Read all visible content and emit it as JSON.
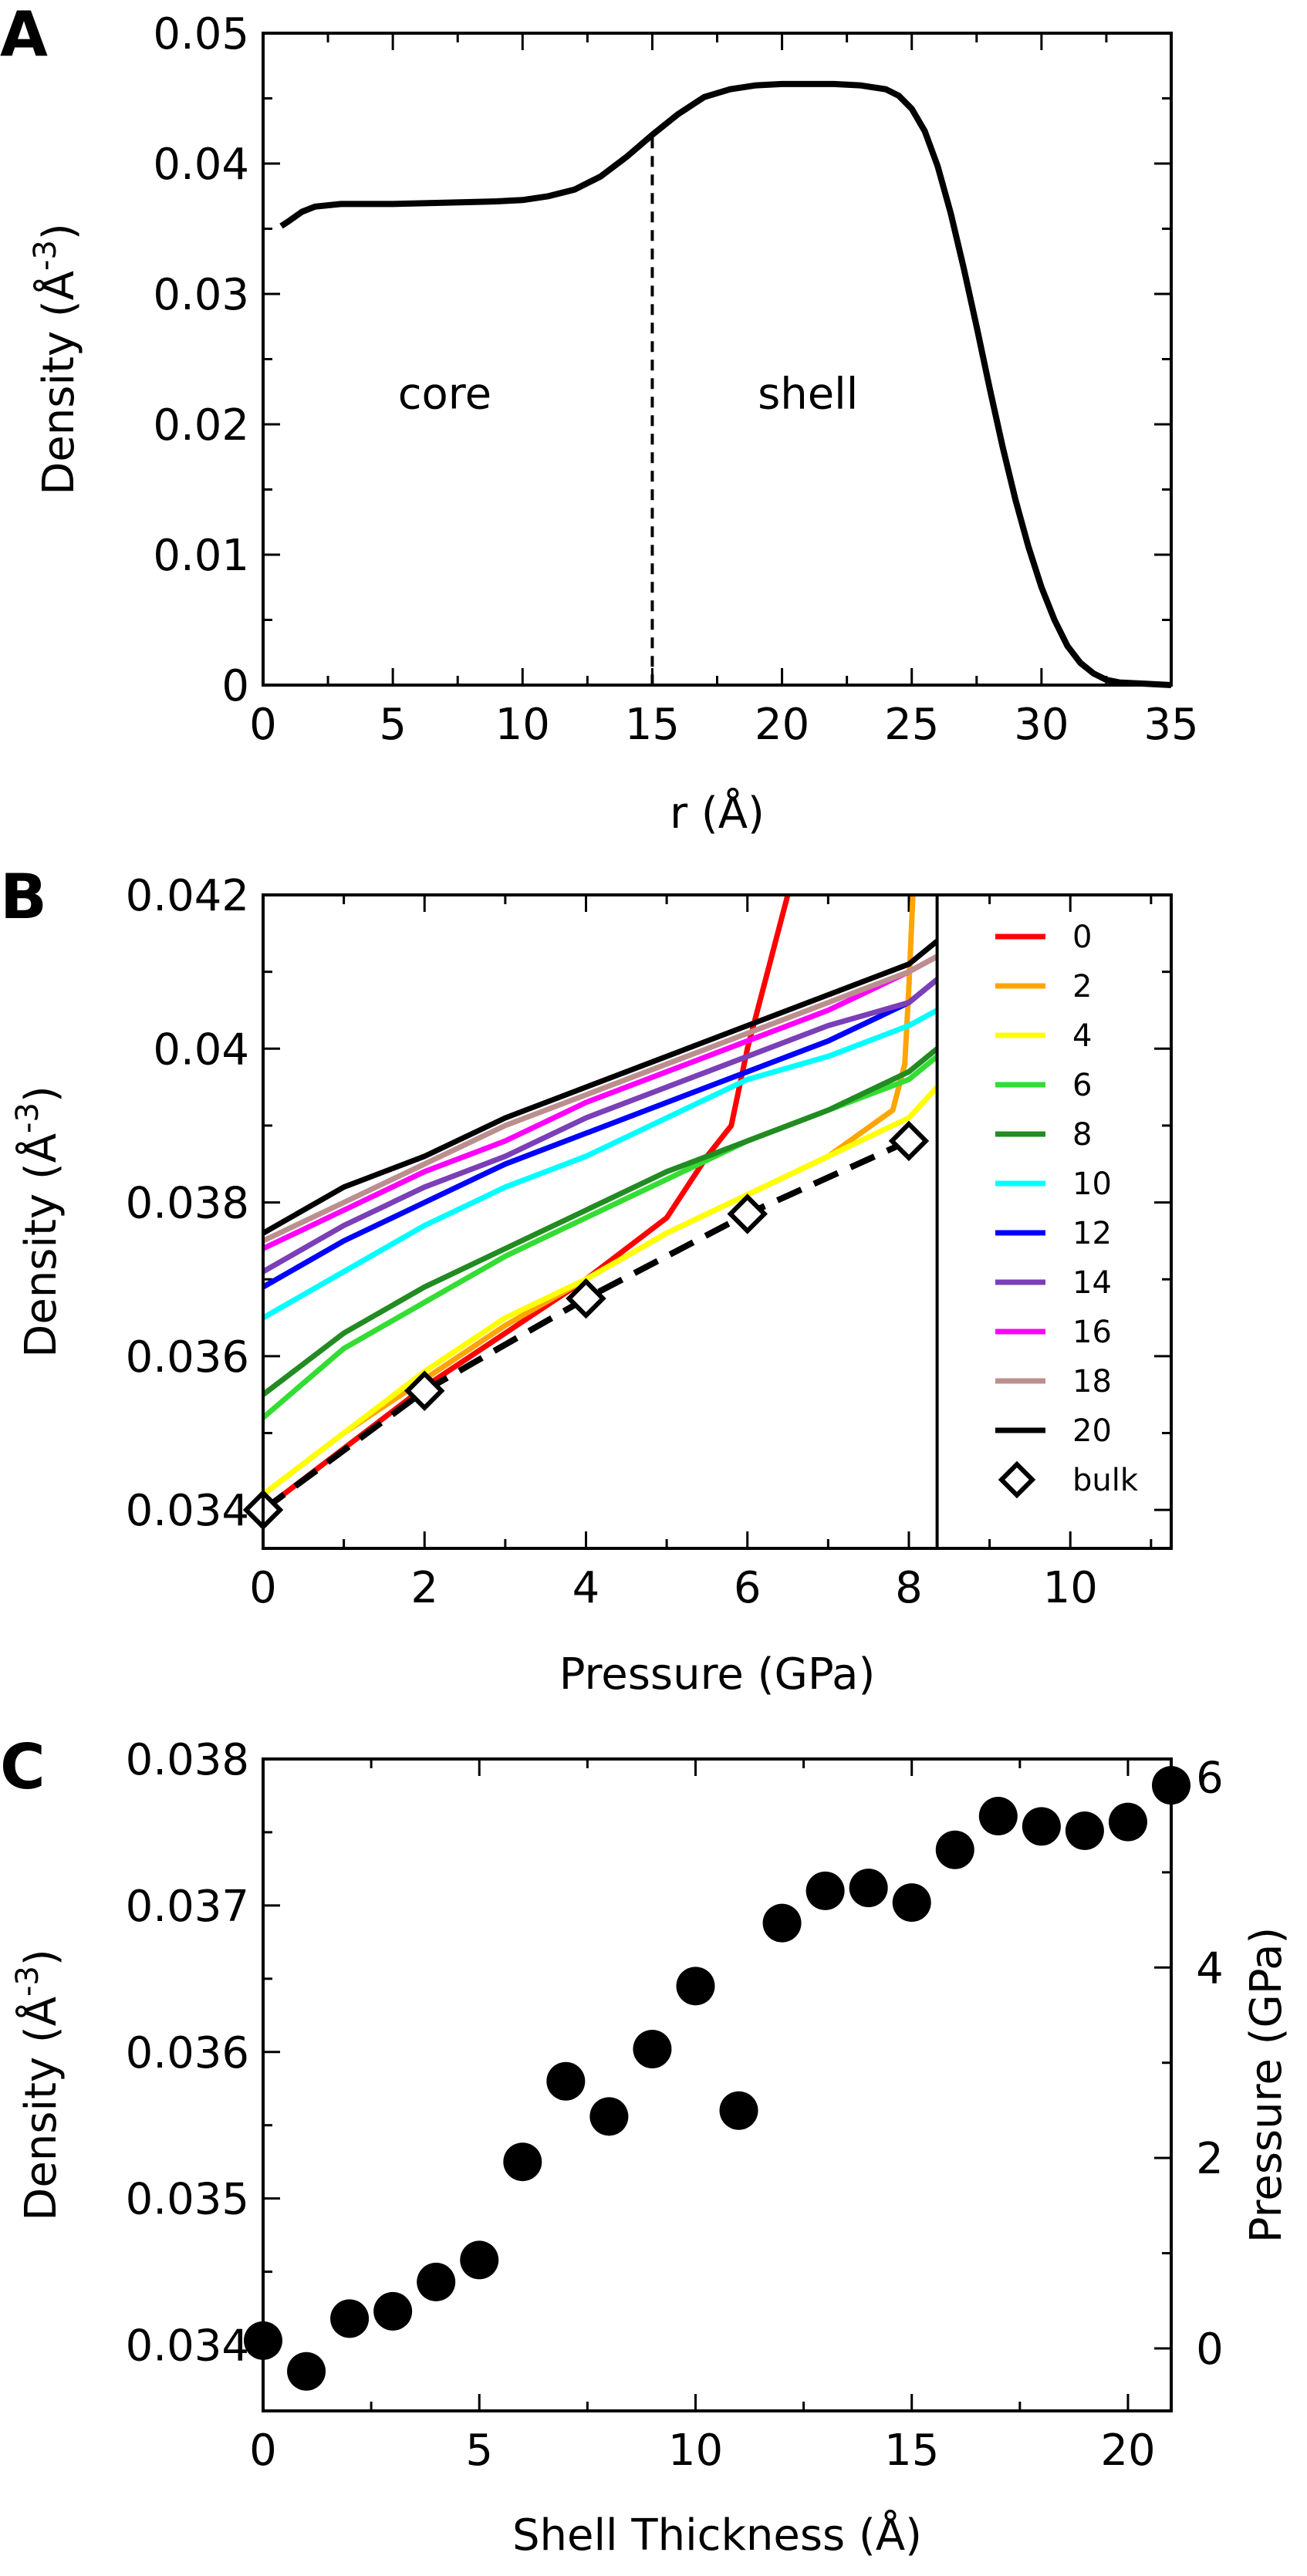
{
  "chart_data": [
    {
      "panel": "A",
      "type": "line",
      "xlabel": "r (Å)",
      "ylabel_text": "Density (Å",
      "ylabel_sup": "-3",
      "ylabel_close": ")",
      "xlim": [
        0,
        35
      ],
      "ylim": [
        0,
        0.05
      ],
      "xticks": [
        0,
        5,
        10,
        15,
        20,
        25,
        30,
        35
      ],
      "yticks": [
        0,
        0.01,
        0.02,
        0.03,
        0.04,
        0.05
      ],
      "ytick_labels": [
        "0",
        "0.01",
        "0.02",
        "0.03",
        "0.04",
        "0.05"
      ],
      "x": [
        0.7,
        1.0,
        1.5,
        2.0,
        3.0,
        5.0,
        7.0,
        9.0,
        10.0,
        11.0,
        12.0,
        13.0,
        14.0,
        15.0,
        16.0,
        17.0,
        18.0,
        19.0,
        20.0,
        21.0,
        22.0,
        23.0,
        24.0,
        24.5,
        25.0,
        25.5,
        26.0,
        26.5,
        27.0,
        27.5,
        28.0,
        28.5,
        29.0,
        29.5,
        30.0,
        30.5,
        31.0,
        31.5,
        32.0,
        32.5,
        33.0,
        34.0,
        35.0
      ],
      "y": [
        0.0352,
        0.0356,
        0.0363,
        0.0367,
        0.0369,
        0.0369,
        0.037,
        0.0371,
        0.0372,
        0.0375,
        0.038,
        0.039,
        0.0405,
        0.0422,
        0.0438,
        0.0451,
        0.0457,
        0.046,
        0.0461,
        0.0461,
        0.0461,
        0.046,
        0.0457,
        0.0452,
        0.0442,
        0.0425,
        0.0398,
        0.0362,
        0.032,
        0.0275,
        0.0228,
        0.0183,
        0.0142,
        0.0106,
        0.0075,
        0.005,
        0.003,
        0.0017,
        0.0009,
        0.0004,
        0.0002,
        0.0001,
        0.0
      ],
      "divider_x": 15,
      "annotations": [
        {
          "text": "core",
          "x": 7,
          "y": 0.0212
        },
        {
          "text": "shell",
          "x": 21,
          "y": 0.0212
        }
      ]
    },
    {
      "panel": "B",
      "type": "line",
      "xlabel": "Pressure (GPa)",
      "ylabel_text": "Density (Å",
      "ylabel_sup": "-3",
      "ylabel_close": ")",
      "xlim": [
        0,
        11.25
      ],
      "ylim": [
        0.0335,
        0.042
      ],
      "xticks": [
        0,
        2,
        4,
        6,
        8,
        10
      ],
      "yticks": [
        0.034,
        0.036,
        0.038,
        0.04,
        0.042
      ],
      "ytick_labels": [
        "0.034",
        "0.036",
        "0.038",
        "0.04",
        "0.042"
      ],
      "legend_divider_x": 8.35,
      "series": [
        {
          "name": "0",
          "color": "#ff0000",
          "x": [
            0,
            1,
            2,
            3,
            4,
            5,
            5.5,
            5.8,
            6.0,
            6.3,
            6.5
          ],
          "y": [
            0.034,
            0.0348,
            0.0356,
            0.0363,
            0.037,
            0.0378,
            0.0386,
            0.039,
            0.04,
            0.0412,
            0.042
          ]
        },
        {
          "name": "2",
          "color": "#ffa500",
          "x": [
            0,
            1,
            2,
            3,
            4,
            5,
            6,
            7,
            7.8,
            7.95,
            8.0,
            8.05
          ],
          "y": [
            0.0342,
            0.035,
            0.0357,
            0.0364,
            0.037,
            0.0376,
            0.0381,
            0.0386,
            0.0392,
            0.0398,
            0.0408,
            0.042
          ]
        },
        {
          "name": "4",
          "color": "#ffff00",
          "x": [
            0,
            1,
            2,
            3,
            4,
            5,
            6,
            7,
            8,
            8.35
          ],
          "y": [
            0.0342,
            0.035,
            0.0358,
            0.0365,
            0.037,
            0.0376,
            0.0381,
            0.0386,
            0.0391,
            0.0395
          ]
        },
        {
          "name": "6",
          "color": "#33dd33",
          "x": [
            0,
            1,
            2,
            3,
            4,
            5,
            6,
            7,
            8,
            8.35
          ],
          "y": [
            0.0352,
            0.0361,
            0.0367,
            0.0373,
            0.0378,
            0.0383,
            0.0388,
            0.0392,
            0.0396,
            0.0399
          ]
        },
        {
          "name": "8",
          "color": "#228b22",
          "x": [
            0,
            1,
            2,
            3,
            4,
            5,
            6,
            7,
            8,
            8.35
          ],
          "y": [
            0.0355,
            0.0363,
            0.0369,
            0.0374,
            0.0379,
            0.0384,
            0.0388,
            0.0392,
            0.0397,
            0.04
          ]
        },
        {
          "name": "10",
          "color": "#00ffff",
          "x": [
            0,
            1,
            2,
            3,
            4,
            5,
            6,
            7,
            8,
            8.35
          ],
          "y": [
            0.0365,
            0.0371,
            0.0377,
            0.0382,
            0.0386,
            0.0391,
            0.0396,
            0.0399,
            0.0403,
            0.0405
          ]
        },
        {
          "name": "12",
          "color": "#0000ff",
          "x": [
            0,
            1,
            2,
            3,
            4,
            5,
            6,
            7,
            8,
            8.35
          ],
          "y": [
            0.0369,
            0.0375,
            0.038,
            0.0385,
            0.0389,
            0.0393,
            0.0397,
            0.0401,
            0.0406,
            0.0409
          ]
        },
        {
          "name": "14",
          "color": "#7b3fb8",
          "x": [
            0,
            1,
            2,
            3,
            4,
            5,
            6,
            7,
            8,
            8.35
          ],
          "y": [
            0.0371,
            0.0377,
            0.0382,
            0.0386,
            0.0391,
            0.0395,
            0.0399,
            0.0403,
            0.0406,
            0.0409
          ]
        },
        {
          "name": "16",
          "color": "#ff00ff",
          "x": [
            0,
            1,
            2,
            3,
            4,
            5,
            6,
            7,
            8,
            8.35
          ],
          "y": [
            0.0374,
            0.0379,
            0.0384,
            0.0388,
            0.0393,
            0.0397,
            0.0401,
            0.0405,
            0.041,
            0.0412
          ]
        },
        {
          "name": "18",
          "color": "#bc8f8f",
          "x": [
            0,
            1,
            2,
            3,
            4,
            5,
            6,
            7,
            8,
            8.35
          ],
          "y": [
            0.0375,
            0.038,
            0.0385,
            0.039,
            0.0394,
            0.0398,
            0.0402,
            0.0406,
            0.041,
            0.0412
          ]
        },
        {
          "name": "20",
          "color": "#000000",
          "x": [
            0,
            1,
            2,
            3,
            4,
            5,
            6,
            7,
            8,
            8.35
          ],
          "y": [
            0.0376,
            0.0382,
            0.0386,
            0.0391,
            0.0395,
            0.0399,
            0.0403,
            0.0407,
            0.0411,
            0.0414
          ]
        }
      ],
      "bulk": {
        "name": "bulk",
        "x": [
          0,
          2,
          4,
          6,
          8
        ],
        "y": [
          0.034,
          0.03555,
          0.03675,
          0.03785,
          0.0388
        ]
      }
    },
    {
      "panel": "C",
      "type": "scatter",
      "xlabel": "Shell Thickness (Å)",
      "ylabel_text": "Density (Å",
      "ylabel_sup": "-3",
      "ylabel_close": ")",
      "y2label": "Pressure (GPa)",
      "xlim": [
        0,
        21
      ],
      "ylim": [
        0.03355,
        0.038
      ],
      "xticks": [
        0,
        5,
        10,
        15,
        20
      ],
      "yticks": [
        0.034,
        0.035,
        0.036,
        0.037,
        0.038
      ],
      "ytick_labels": [
        "0.034",
        "0.035",
        "0.036",
        "0.037",
        "0.038"
      ],
      "y2lim": [
        -0.656,
        6.19
      ],
      "y2ticks": [
        0,
        2,
        4,
        6
      ],
      "x": [
        0,
        1,
        2,
        3,
        4,
        5,
        6,
        7,
        8,
        9,
        10,
        11,
        12,
        13,
        14,
        15,
        16,
        17,
        18,
        19,
        20,
        21
      ],
      "y": [
        0.03403,
        0.03382,
        0.03418,
        0.03423,
        0.03443,
        0.03458,
        0.03525,
        0.0358,
        0.03556,
        0.03602,
        0.03645,
        0.0356,
        0.03688,
        0.0371,
        0.03712,
        0.03702,
        0.03738,
        0.03761,
        0.03754,
        0.03751,
        0.03757,
        0.03782
      ]
    }
  ]
}
